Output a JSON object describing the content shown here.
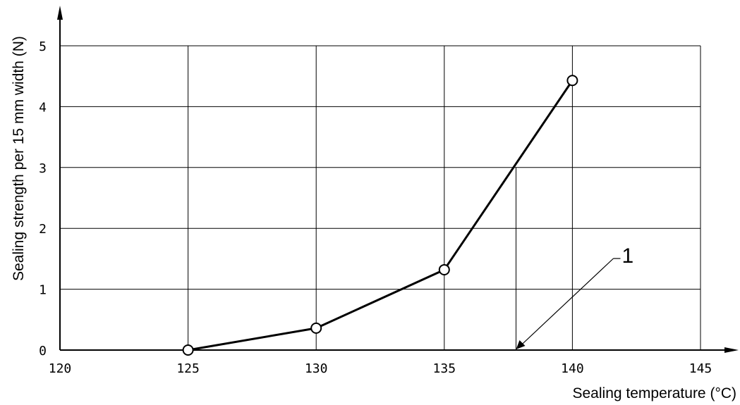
{
  "chart_data": {
    "type": "line",
    "title": "",
    "xlabel": "Sealing temperature (°C)",
    "ylabel": "Sealing strength per 15 mm width (N)",
    "xlim": [
      120,
      145
    ],
    "ylim": [
      0,
      5
    ],
    "x_ticks": [
      120,
      125,
      130,
      135,
      140,
      145
    ],
    "y_ticks": [
      0,
      1,
      2,
      3,
      4,
      5
    ],
    "x_tick_labels": [
      "120",
      "125",
      "130",
      "135",
      "140",
      "145"
    ],
    "y_tick_labels": [
      "0",
      "1",
      "2",
      "3",
      "4",
      "5"
    ],
    "grid": true,
    "marker": "open-circle",
    "series": [
      {
        "x": [
          125,
          130,
          135,
          140
        ],
        "y": [
          0,
          0.36,
          1.32,
          4.43
        ]
      }
    ],
    "annotations": [
      {
        "label": "1",
        "x": 137.8,
        "y": 3.0
      }
    ],
    "colors": {
      "line": "#000000",
      "grid": "#000000",
      "background": "#ffffff"
    }
  }
}
